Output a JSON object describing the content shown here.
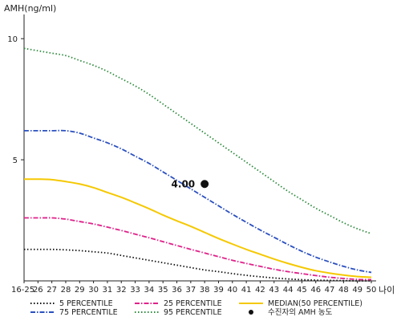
{
  "chart_data": {
    "type": "line",
    "ylabel": "AMH(ng/ml)",
    "xlabel": "나이",
    "ylim": [
      0,
      11
    ],
    "yticks": [
      5,
      10
    ],
    "x_categories": [
      "16-25",
      "26",
      "27",
      "28",
      "29",
      "30",
      "31",
      "32",
      "33",
      "34",
      "35",
      "36",
      "37",
      "38",
      "39",
      "40",
      "41",
      "42",
      "43",
      "44",
      "45",
      "46",
      "47",
      "48",
      "49",
      "50"
    ],
    "series": [
      {
        "name": "5 PERCENTILE",
        "color": "#111111",
        "dash": "dotted",
        "values": [
          1.3,
          1.3,
          1.3,
          1.28,
          1.25,
          1.2,
          1.15,
          1.05,
          0.95,
          0.85,
          0.75,
          0.65,
          0.55,
          0.45,
          0.38,
          0.3,
          0.23,
          0.17,
          0.12,
          0.08,
          0.05,
          0.03,
          0.02,
          0.01,
          0.0,
          0.0
        ]
      },
      {
        "name": "25 PERCENTILE",
        "color": "#e0218a",
        "dash": "dashdot",
        "values": [
          2.6,
          2.6,
          2.6,
          2.55,
          2.45,
          2.35,
          2.22,
          2.08,
          1.93,
          1.78,
          1.62,
          1.46,
          1.3,
          1.15,
          1.0,
          0.85,
          0.72,
          0.6,
          0.48,
          0.38,
          0.3,
          0.22,
          0.15,
          0.1,
          0.06,
          0.05
        ]
      },
      {
        "name": "MEDIAN(50 PERCENTILE)",
        "color": "#f5c800",
        "dash": "solid",
        "values": [
          4.2,
          4.2,
          4.18,
          4.1,
          4.0,
          3.85,
          3.65,
          3.45,
          3.22,
          2.98,
          2.72,
          2.48,
          2.25,
          2.0,
          1.75,
          1.52,
          1.3,
          1.1,
          0.9,
          0.72,
          0.56,
          0.42,
          0.32,
          0.24,
          0.18,
          0.15
        ]
      },
      {
        "name": "75 PERCENTILE",
        "color": "#2a4fbf",
        "dash": "dashdot",
        "values": [
          6.2,
          6.2,
          6.2,
          6.2,
          6.1,
          5.9,
          5.7,
          5.45,
          5.15,
          4.85,
          4.5,
          4.15,
          3.8,
          3.45,
          3.1,
          2.75,
          2.42,
          2.1,
          1.8,
          1.5,
          1.22,
          0.98,
          0.78,
          0.6,
          0.45,
          0.35
        ]
      },
      {
        "name": "95 PERCENTILE",
        "color": "#2e8b3e",
        "dash": "dotted",
        "values": [
          9.6,
          9.5,
          9.4,
          9.3,
          9.1,
          8.9,
          8.65,
          8.35,
          8.05,
          7.7,
          7.3,
          6.9,
          6.5,
          6.1,
          5.7,
          5.3,
          4.9,
          4.5,
          4.1,
          3.7,
          3.35,
          3.0,
          2.7,
          2.4,
          2.15,
          1.95
        ]
      }
    ],
    "point": {
      "label": "4.00",
      "x_index": 13,
      "y": 4.0,
      "legend": "수진자의 AMH 농도"
    }
  }
}
